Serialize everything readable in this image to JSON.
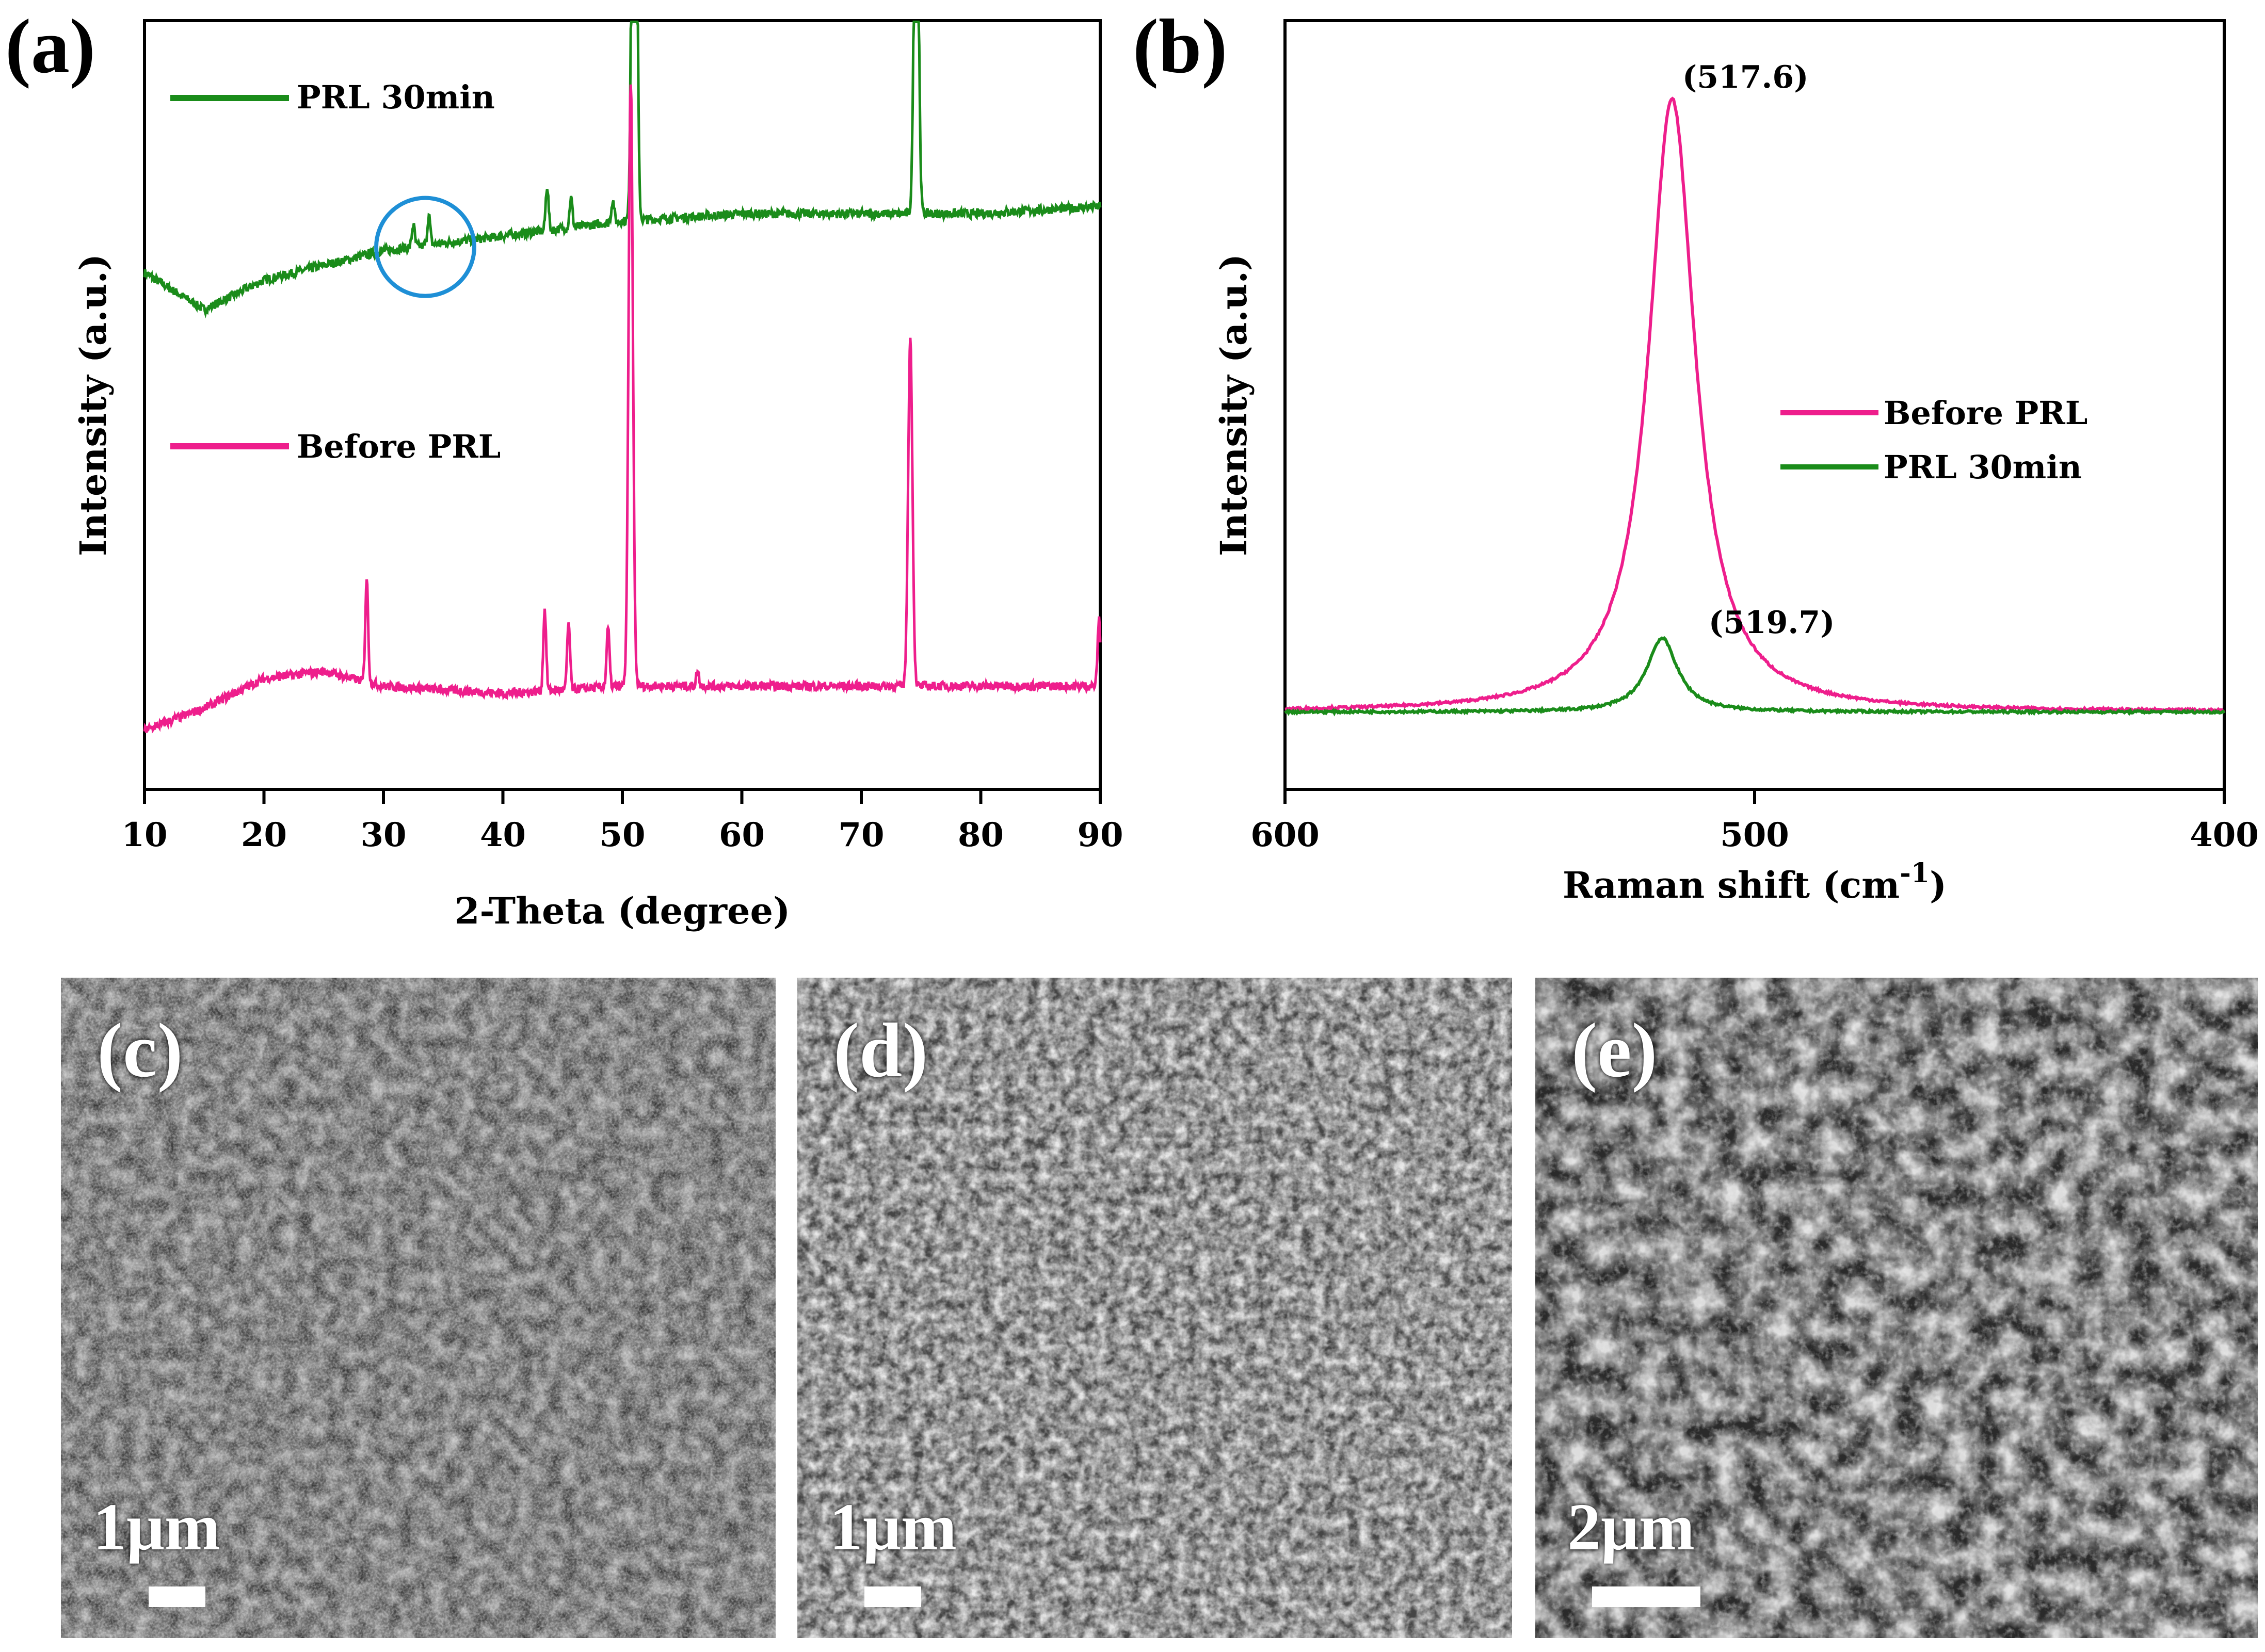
{
  "panels": {
    "a": {
      "label": "(a)"
    },
    "b": {
      "label": "(b)"
    },
    "c": {
      "label": "(c)",
      "scale": "1μm"
    },
    "d": {
      "label": "(d)",
      "scale": "1μm"
    },
    "e": {
      "label": "(e)",
      "scale": "2μm"
    }
  },
  "colors": {
    "green": "#1a8c1a",
    "pink": "#ee1e8c",
    "circle": "#1e8fd6"
  },
  "chart_data": [
    {
      "type": "line",
      "panel": "a",
      "xlabel": "2-Theta (degree)",
      "ylabel": "Intensity (a.u.)",
      "xlim": [
        10,
        90
      ],
      "xticks": [
        "10",
        "20",
        "30",
        "40",
        "50",
        "60",
        "70",
        "80",
        "90"
      ],
      "legend": [
        "PRL 30min",
        "Before PRL"
      ],
      "series": [
        {
          "name": "PRL 30min",
          "color": "#1a8c1a",
          "baseline": [
            [
              10,
              0.7
            ],
            [
              15,
              0.65
            ],
            [
              20,
              0.69
            ],
            [
              30,
              0.73
            ],
            [
              40,
              0.75
            ],
            [
              50,
              0.77
            ],
            [
              60,
              0.78
            ],
            [
              70,
              0.78
            ],
            [
              80,
              0.78
            ],
            [
              90,
              0.79
            ]
          ],
          "peaks": [
            [
              32.5,
              0.03
            ],
            [
              33.8,
              0.04
            ],
            [
              43.7,
              0.06
            ],
            [
              45.7,
              0.04
            ],
            [
              49.2,
              0.03
            ],
            [
              51.0,
              1.05
            ],
            [
              74.6,
              0.6
            ]
          ]
        },
        {
          "name": "Before PRL",
          "color": "#ee1e8c",
          "baseline": [
            [
              10,
              0.08
            ],
            [
              15,
              0.11
            ],
            [
              20,
              0.15
            ],
            [
              25,
              0.16
            ],
            [
              30,
              0.14
            ],
            [
              40,
              0.13
            ],
            [
              50,
              0.14
            ],
            [
              60,
              0.14
            ],
            [
              70,
              0.14
            ],
            [
              80,
              0.14
            ],
            [
              90,
              0.14
            ]
          ],
          "peaks": [
            [
              28.6,
              0.14
            ],
            [
              43.5,
              0.11
            ],
            [
              45.5,
              0.09
            ],
            [
              48.8,
              0.08
            ],
            [
              50.7,
              0.82
            ],
            [
              56.3,
              0.02
            ],
            [
              74.1,
              0.47
            ],
            [
              89.9,
              0.09
            ]
          ]
        }
      ],
      "annotation": {
        "type": "circle",
        "x": 33.5,
        "note": ""
      }
    },
    {
      "type": "line",
      "panel": "b",
      "xlabel": "Raman shift (cm",
      "xlabel_sup": "-1",
      "xlabel_end": ")",
      "ylabel": "Intensity (a.u.)",
      "xlim": [
        600,
        400
      ],
      "xticks": [
        "600",
        "500",
        "400"
      ],
      "legend": [
        "Before PRL",
        "PRL 30min"
      ],
      "series": [
        {
          "name": "Before PRL",
          "color": "#ee1e8c",
          "peak_x": 517.6,
          "peak_height": 1.0,
          "width": 6
        },
        {
          "name": "PRL 30min",
          "color": "#1a8c1a",
          "peak_x": 519.7,
          "peak_height": 0.12,
          "width": 4
        }
      ],
      "peak_labels": [
        "(517.6)",
        "(519.7)"
      ]
    }
  ]
}
